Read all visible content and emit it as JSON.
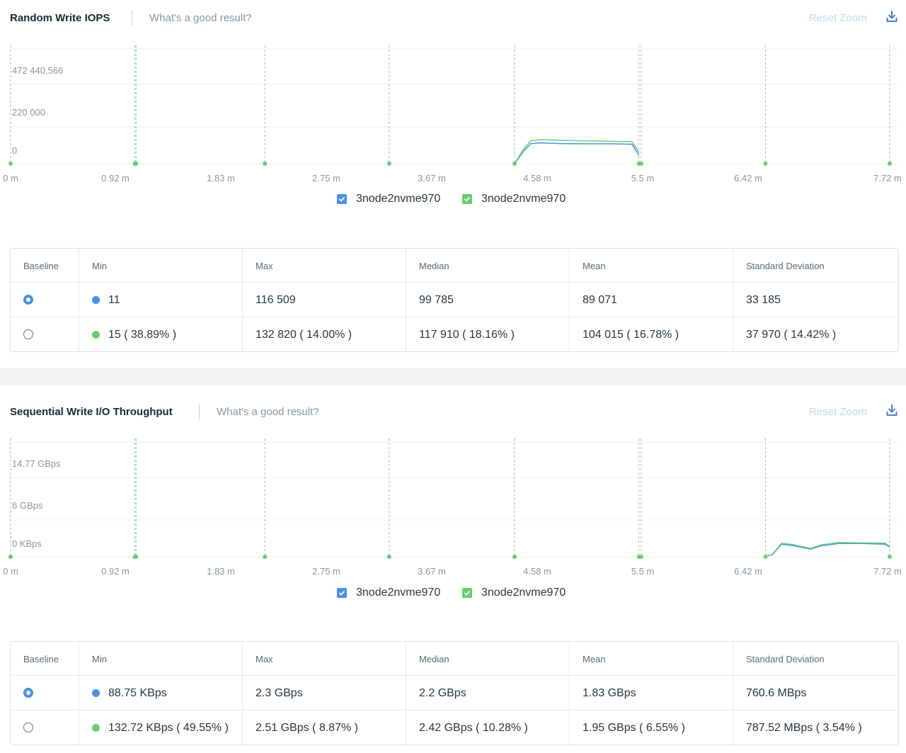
{
  "colors": {
    "series_blue": "#4a90e2",
    "series_green": "#6ccb72",
    "grid_line": "#eef0f2",
    "marker_line": "#7fc9b0",
    "axis_text": "#8a939f",
    "reset_zoom": "#c6d7ea",
    "download": "#4a7fc1"
  },
  "icons": {
    "download": "download-icon",
    "check": "check-icon"
  },
  "common": {
    "good_result_link": "What's a good result?",
    "reset_zoom": "Reset Zoom",
    "x_ticks": [
      "0 m",
      "0.92 m",
      "1.83 m",
      "2.75 m",
      "3.67 m",
      "4.58 m",
      "5.5 m",
      "6.42 m",
      "7.72 m"
    ],
    "table_headers": [
      "Baseline",
      "Min",
      "Max",
      "Median",
      "Mean",
      "Standard Deviation"
    ]
  },
  "panels": [
    {
      "title": "Random Write IOPS",
      "legend": [
        "3node2nvme970",
        "3node2nvme970"
      ],
      "rows": [
        {
          "baseline": true,
          "min": "11",
          "max": "116 509",
          "median": "99 785",
          "mean": "89 071",
          "std": "33 185"
        },
        {
          "baseline": false,
          "min": "15 ( 38.89% )",
          "max": "132 820 ( 14.00% )",
          "median": "117 910 ( 18.16% )",
          "mean": "104 015 ( 16.78% )",
          "std": "37 970 ( 14.42% )"
        }
      ]
    },
    {
      "title": "Sequential Write I/O Throughput",
      "legend": [
        "3node2nvme970",
        "3node2nvme970"
      ],
      "rows": [
        {
          "baseline": true,
          "min": "88.75 KBps",
          "max": "2.3 GBps",
          "median": "2.2 GBps",
          "mean": "1.83 GBps",
          "std": "760.6 MBps"
        },
        {
          "baseline": false,
          "min": "132.72 KBps ( 49.55% )",
          "max": "2.51 GBps ( 8.87% )",
          "median": "2.42 GBps ( 10.28% )",
          "mean": "1.95 GBps ( 6.55% )",
          "std": "787.52 MBps ( 3.54% )"
        }
      ]
    }
  ],
  "chart_data": [
    {
      "type": "line",
      "title": "Random Write IOPS",
      "xlabel": "",
      "ylabel": "",
      "y_tick_labels": [
        "0",
        "220 000",
        "472 440,566"
      ],
      "x_tick_labels": [
        "0 m",
        "0.92 m",
        "1.83 m",
        "2.75 m",
        "3.67 m",
        "4.58 m",
        "5.5 m",
        "6.42 m",
        "7.72 m"
      ],
      "xlim": [
        0,
        7.72
      ],
      "ylim": [
        0,
        560000
      ],
      "grid": true,
      "legend_position": "bottom-center",
      "markers_x": [
        0,
        1.08,
        1.09,
        2.21,
        3.29,
        4.38,
        5.46,
        5.48,
        6.56,
        7.64
      ],
      "series": [
        {
          "name": "3node2nvme970",
          "x": [
            4.38,
            4.46,
            4.52,
            4.6,
            4.8,
            5.0,
            5.2,
            5.4,
            5.46
          ],
          "y": [
            0,
            60000,
            95000,
            98000,
            95000,
            94000,
            94000,
            92000,
            40000
          ]
        },
        {
          "name": "3node2nvme970",
          "x": [
            4.38,
            4.46,
            4.52,
            4.6,
            4.8,
            5.0,
            5.2,
            5.4,
            5.46
          ],
          "y": [
            0,
            70000,
            108000,
            114000,
            110000,
            108000,
            106000,
            104000,
            55000
          ]
        }
      ]
    },
    {
      "type": "line",
      "title": "Sequential Write I/O Throughput",
      "xlabel": "",
      "ylabel": "",
      "y_tick_labels": [
        "0 KBps",
        "6 GBps",
        "14.77 GBps"
      ],
      "x_tick_labels": [
        "0 m",
        "0.92 m",
        "1.83 m",
        "2.75 m",
        "3.67 m",
        "4.58 m",
        "5.5 m",
        "6.42 m",
        "7.72 m"
      ],
      "xlim": [
        0,
        7.72
      ],
      "ylim": [
        0,
        17
      ],
      "grid": true,
      "legend_position": "bottom-center",
      "markers_x": [
        0,
        1.08,
        1.09,
        2.21,
        3.29,
        4.38,
        5.46,
        5.48,
        6.56,
        7.64
      ],
      "series": [
        {
          "name": "3node2nvme970",
          "x": [
            6.56,
            6.62,
            6.7,
            6.8,
            6.95,
            7.05,
            7.2,
            7.4,
            7.6,
            7.64
          ],
          "y": [
            0.1,
            0.3,
            1.8,
            1.6,
            1.1,
            1.6,
            1.9,
            1.9,
            1.8,
            1.4
          ]
        },
        {
          "name": "3node2nvme970",
          "x": [
            6.56,
            6.62,
            6.7,
            6.8,
            6.95,
            7.05,
            7.2,
            7.4,
            7.6,
            7.64
          ],
          "y": [
            0.1,
            0.35,
            1.95,
            1.75,
            1.2,
            1.75,
            2.05,
            2.0,
            1.95,
            1.5
          ]
        }
      ]
    }
  ]
}
